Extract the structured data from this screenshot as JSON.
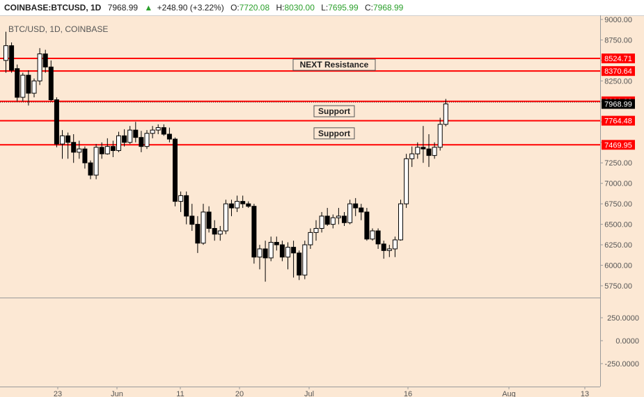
{
  "header": {
    "symbol": "COINBASE:BTCUSD, 1D",
    "last": "7968.99",
    "change_arrow": "▲",
    "change": "+248.90 (+3.22%)",
    "o_label": "O:",
    "o_value": "7720.08",
    "h_label": "H:",
    "h_value": "8030.00",
    "l_label": "L:",
    "l_value": "7695.99",
    "c_label": "C:",
    "c_value": "7968.99"
  },
  "colors": {
    "background": "#fce8d4",
    "up_candle": "#ffffff",
    "down_candle": "#000000",
    "level_line": "#ff0000",
    "change_green": "#2ca02c",
    "axis_text": "#555555"
  },
  "chart_data": [
    {
      "type": "candlestick",
      "title": "BTC/USD, 1D, COINBASE",
      "y_ticks": [
        "9000.00",
        "8750.00",
        "8500.00",
        "8250.00",
        "8000.00",
        "7750.00",
        "7500.00",
        "7250.00",
        "7000.00",
        "6750.00",
        "6500.00",
        "6250.00",
        "6000.00",
        "5750.00"
      ],
      "ylim": [
        5600,
        9050
      ],
      "x_ticks": [
        "23",
        "Jun",
        "11",
        "20",
        "Jul",
        "16",
        "Aug",
        "13"
      ],
      "series": [
        {
          "values": [
            [
              8500,
              8850,
              8350,
              8680
            ],
            [
              8680,
              8720,
              8350,
              8380
            ],
            [
              8400,
              8450,
              8000,
              8050
            ],
            [
              8050,
              8350,
              8000,
              8320
            ],
            [
              8320,
              8380,
              7950,
              8100
            ],
            [
              8100,
              8280,
              8050,
              8250
            ],
            [
              8250,
              8650,
              8200,
              8580
            ],
            [
              8580,
              8630,
              8350,
              8420
            ],
            [
              8420,
              8500,
              8000,
              8020
            ],
            [
              8020,
              8050,
              7440,
              7480
            ],
            [
              7480,
              7650,
              7300,
              7580
            ],
            [
              7580,
              7620,
              7300,
              7500
            ],
            [
              7500,
              7600,
              7250,
              7380
            ],
            [
              7380,
              7520,
              7300,
              7420
            ],
            [
              7420,
              7450,
              7180,
              7250
            ],
            [
              7250,
              7280,
              7050,
              7100
            ],
            [
              7100,
              7480,
              7050,
              7440
            ],
            [
              7440,
              7500,
              7300,
              7360
            ],
            [
              7360,
              7550,
              7350,
              7450
            ],
            [
              7450,
              7520,
              7320,
              7400
            ],
            [
              7400,
              7630,
              7380,
              7580
            ],
            [
              7580,
              7660,
              7450,
              7500
            ],
            [
              7500,
              7700,
              7480,
              7650
            ],
            [
              7650,
              7750,
              7500,
              7560
            ],
            [
              7560,
              7640,
              7380,
              7450
            ],
            [
              7450,
              7650,
              7420,
              7610
            ],
            [
              7610,
              7700,
              7550,
              7650
            ],
            [
              7650,
              7720,
              7600,
              7680
            ],
            [
              7680,
              7720,
              7580,
              7600
            ],
            [
              7600,
              7680,
              7500,
              7540
            ],
            [
              7540,
              7560,
              6720,
              6780
            ],
            [
              6780,
              6900,
              6650,
              6850
            ],
            [
              6850,
              6900,
              6500,
              6600
            ],
            [
              6600,
              6750,
              6420,
              6500
            ],
            [
              6500,
              6600,
              6150,
              6270
            ],
            [
              6270,
              6750,
              6250,
              6650
            ],
            [
              6650,
              6720,
              6400,
              6450
            ],
            [
              6450,
              6550,
              6300,
              6380
            ],
            [
              6380,
              6480,
              6300,
              6420
            ],
            [
              6420,
              6800,
              6380,
              6750
            ],
            [
              6750,
              6800,
              6600,
              6700
            ],
            [
              6700,
              6850,
              6650,
              6780
            ],
            [
              6780,
              6850,
              6700,
              6750
            ],
            [
              6750,
              6780,
              6700,
              6720
            ],
            [
              6720,
              6750,
              6020,
              6100
            ],
            [
              6100,
              6250,
              5950,
              6200
            ],
            [
              6200,
              6300,
              5800,
              6090
            ],
            [
              6090,
              6350,
              6050,
              6280
            ],
            [
              6280,
              6350,
              6180,
              6250
            ],
            [
              6250,
              6300,
              6050,
              6100
            ],
            [
              6100,
              6280,
              5950,
              6220
            ],
            [
              6220,
              6300,
              5850,
              6150
            ],
            [
              6150,
              6180,
              5820,
              5880
            ],
            [
              5880,
              6300,
              5830,
              6250
            ],
            [
              6250,
              6450,
              6200,
              6400
            ],
            [
              6400,
              6550,
              6300,
              6450
            ],
            [
              6450,
              6650,
              6400,
              6600
            ],
            [
              6600,
              6700,
              6480,
              6500
            ],
            [
              6500,
              6620,
              6450,
              6580
            ],
            [
              6580,
              6700,
              6500,
              6600
            ],
            [
              6600,
              6650,
              6480,
              6520
            ],
            [
              6520,
              6800,
              6500,
              6750
            ],
            [
              6750,
              6820,
              6600,
              6700
            ],
            [
              6700,
              6750,
              6550,
              6650
            ],
            [
              6650,
              6700,
              6300,
              6320
            ],
            [
              6320,
              6450,
              6300,
              6420
            ],
            [
              6420,
              6450,
              6200,
              6260
            ],
            [
              6260,
              6300,
              6080,
              6180
            ],
            [
              6180,
              6250,
              6100,
              6200
            ],
            [
              6200,
              6350,
              6100,
              6310
            ],
            [
              6310,
              6800,
              6300,
              6750
            ],
            [
              6750,
              7360,
              6700,
              7300
            ],
            [
              7300,
              7450,
              7200,
              7360
            ],
            [
              7360,
              7500,
              7300,
              7440
            ],
            [
              7440,
              7700,
              7250,
              7420
            ],
            [
              7420,
              7600,
              7200,
              7340
            ],
            [
              7340,
              7500,
              7300,
              7440
            ],
            [
              7440,
              7800,
              7400,
              7720
            ],
            [
              7720,
              8030,
              7696,
              7969
            ]
          ]
        }
      ],
      "levels": [
        {
          "value": 8524.71,
          "label": "8524.71"
        },
        {
          "value": 8370.64,
          "label": "8370.64"
        },
        {
          "value": 8001.0,
          "label": "8001.00"
        },
        {
          "value": 7764.48,
          "label": "7764.48"
        },
        {
          "value": 7469.95,
          "label": "7469.95"
        }
      ],
      "last_price_label": "7968.99",
      "last_price_value": 7968.99,
      "dotted_value": 7990,
      "annotations": [
        {
          "text": "NEXT Resistance",
          "value": 8447
        },
        {
          "text": "Support",
          "value": 7880
        },
        {
          "text": "Support",
          "value": 7610
        }
      ]
    },
    {
      "type": "line",
      "y_ticks": [
        "250.0000",
        "0.0000",
        "-250.0000"
      ],
      "ylim": [
        -560,
        420
      ],
      "series": []
    }
  ]
}
